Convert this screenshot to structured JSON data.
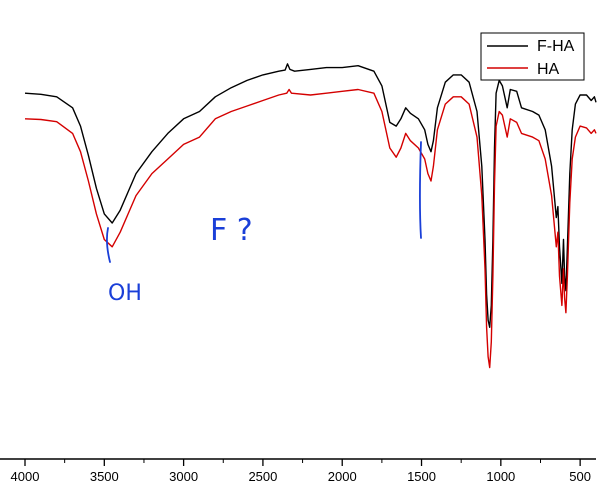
{
  "chart_data": {
    "type": "line",
    "title": "",
    "xlabel": "",
    "ylabel": "",
    "x_reversed": true,
    "xlim": [
      4000,
      400
    ],
    "ylim": [
      -100,
      20
    ],
    "x_ticks": [
      4000,
      3500,
      3000,
      2500,
      2000,
      1500,
      1000,
      500
    ],
    "x_tick_labels": [
      "4000",
      "3500",
      "3000",
      "2500",
      "2000",
      "1500",
      "1000",
      "500"
    ],
    "grid": false,
    "legend_position": "top-right",
    "series": [
      {
        "name": "F-HA",
        "color": "#000000",
        "points": [
          [
            4000,
            0.0
          ],
          [
            3900,
            -0.3
          ],
          [
            3800,
            -1.0
          ],
          [
            3700,
            -4.0
          ],
          [
            3650,
            -9.0
          ],
          [
            3600,
            -17.0
          ],
          [
            3550,
            -26.0
          ],
          [
            3500,
            -33.0
          ],
          [
            3450,
            -35.5
          ],
          [
            3400,
            -32.0
          ],
          [
            3350,
            -27.0
          ],
          [
            3300,
            -22.0
          ],
          [
            3200,
            -16.0
          ],
          [
            3100,
            -11.0
          ],
          [
            3000,
            -7.0
          ],
          [
            2900,
            -5.0
          ],
          [
            2800,
            -1.0
          ],
          [
            2700,
            1.5
          ],
          [
            2600,
            3.5
          ],
          [
            2500,
            5.0
          ],
          [
            2400,
            6.0
          ],
          [
            2360,
            6.3
          ],
          [
            2345,
            8.0
          ],
          [
            2330,
            6.5
          ],
          [
            2300,
            6.0
          ],
          [
            2200,
            6.5
          ],
          [
            2100,
            7.0
          ],
          [
            2000,
            7.0
          ],
          [
            1900,
            7.5
          ],
          [
            1800,
            6.0
          ],
          [
            1750,
            2.0
          ],
          [
            1700,
            -8.0
          ],
          [
            1660,
            -9.0
          ],
          [
            1630,
            -7.0
          ],
          [
            1600,
            -4.0
          ],
          [
            1570,
            -5.5
          ],
          [
            1520,
            -7.0
          ],
          [
            1480,
            -10.0
          ],
          [
            1460,
            -14.0
          ],
          [
            1440,
            -16.0
          ],
          [
            1425,
            -13.0
          ],
          [
            1400,
            -4.0
          ],
          [
            1350,
            3.0
          ],
          [
            1300,
            5.0
          ],
          [
            1250,
            5.0
          ],
          [
            1200,
            3.0
          ],
          [
            1150,
            -5.0
          ],
          [
            1120,
            -20.0
          ],
          [
            1100,
            -40.0
          ],
          [
            1090,
            -55.0
          ],
          [
            1080,
            -62.0
          ],
          [
            1070,
            -64.0
          ],
          [
            1060,
            -58.0
          ],
          [
            1050,
            -40.0
          ],
          [
            1040,
            -15.0
          ],
          [
            1030,
            0.0
          ],
          [
            1010,
            3.5
          ],
          [
            990,
            2.0
          ],
          [
            960,
            -4.0
          ],
          [
            940,
            1.0
          ],
          [
            900,
            0.5
          ],
          [
            870,
            -4.0
          ],
          [
            800,
            -5.0
          ],
          [
            760,
            -6.0
          ],
          [
            720,
            -10.0
          ],
          [
            680,
            -20.0
          ],
          [
            650,
            -34.0
          ],
          [
            640,
            -31.0
          ],
          [
            630,
            -42.0
          ],
          [
            615,
            -52.0
          ],
          [
            605,
            -40.0
          ],
          [
            598,
            -50.0
          ],
          [
            590,
            -54.0
          ],
          [
            580,
            -42.0
          ],
          [
            565,
            -22.0
          ],
          [
            550,
            -10.0
          ],
          [
            530,
            -3.0
          ],
          [
            500,
            -0.5
          ],
          [
            460,
            -0.5
          ],
          [
            430,
            -2.0
          ],
          [
            410,
            -1.0
          ],
          [
            400,
            -2.5
          ]
        ]
      },
      {
        "name": "HA",
        "color": "#d40000",
        "points": [
          [
            4000,
            -7.0
          ],
          [
            3900,
            -7.2
          ],
          [
            3800,
            -7.8
          ],
          [
            3700,
            -11.0
          ],
          [
            3650,
            -16.0
          ],
          [
            3600,
            -24.0
          ],
          [
            3550,
            -33.0
          ],
          [
            3500,
            -40.0
          ],
          [
            3450,
            -42.0
          ],
          [
            3400,
            -38.0
          ],
          [
            3350,
            -33.0
          ],
          [
            3300,
            -28.0
          ],
          [
            3200,
            -22.0
          ],
          [
            3100,
            -18.0
          ],
          [
            3000,
            -14.0
          ],
          [
            2900,
            -12.0
          ],
          [
            2800,
            -7.0
          ],
          [
            2700,
            -5.0
          ],
          [
            2600,
            -3.5
          ],
          [
            2500,
            -2.0
          ],
          [
            2400,
            -0.5
          ],
          [
            2350,
            0.0
          ],
          [
            2335,
            1.0
          ],
          [
            2320,
            0.0
          ],
          [
            2200,
            -0.5
          ],
          [
            2100,
            0.0
          ],
          [
            2000,
            0.5
          ],
          [
            1900,
            1.0
          ],
          [
            1800,
            0.0
          ],
          [
            1750,
            -5.0
          ],
          [
            1700,
            -15.0
          ],
          [
            1660,
            -17.5
          ],
          [
            1630,
            -15.0
          ],
          [
            1600,
            -11.0
          ],
          [
            1570,
            -13.0
          ],
          [
            1520,
            -15.0
          ],
          [
            1480,
            -18.0
          ],
          [
            1460,
            -22.0
          ],
          [
            1440,
            -24.0
          ],
          [
            1425,
            -20.0
          ],
          [
            1400,
            -10.0
          ],
          [
            1350,
            -3.0
          ],
          [
            1300,
            -1.0
          ],
          [
            1250,
            -1.0
          ],
          [
            1200,
            -3.0
          ],
          [
            1150,
            -12.0
          ],
          [
            1120,
            -28.0
          ],
          [
            1100,
            -48.0
          ],
          [
            1090,
            -64.0
          ],
          [
            1080,
            -72.0
          ],
          [
            1070,
            -75.0
          ],
          [
            1060,
            -68.0
          ],
          [
            1050,
            -50.0
          ],
          [
            1040,
            -25.0
          ],
          [
            1030,
            -9.0
          ],
          [
            1010,
            -5.0
          ],
          [
            990,
            -6.0
          ],
          [
            960,
            -12.0
          ],
          [
            940,
            -7.0
          ],
          [
            900,
            -8.0
          ],
          [
            870,
            -11.0
          ],
          [
            800,
            -12.0
          ],
          [
            760,
            -13.0
          ],
          [
            720,
            -18.0
          ],
          [
            680,
            -28.0
          ],
          [
            650,
            -42.0
          ],
          [
            640,
            -38.0
          ],
          [
            630,
            -50.0
          ],
          [
            615,
            -58.0
          ],
          [
            605,
            -48.0
          ],
          [
            598,
            -56.0
          ],
          [
            590,
            -60.0
          ],
          [
            580,
            -50.0
          ],
          [
            565,
            -30.0
          ],
          [
            550,
            -18.0
          ],
          [
            530,
            -12.0
          ],
          [
            500,
            -9.0
          ],
          [
            460,
            -9.5
          ],
          [
            430,
            -11.0
          ],
          [
            410,
            -10.0
          ],
          [
            400,
            -11.0
          ]
        ]
      }
    ]
  },
  "annotations": {
    "oh_label": "OH",
    "f_question": "F ?"
  }
}
